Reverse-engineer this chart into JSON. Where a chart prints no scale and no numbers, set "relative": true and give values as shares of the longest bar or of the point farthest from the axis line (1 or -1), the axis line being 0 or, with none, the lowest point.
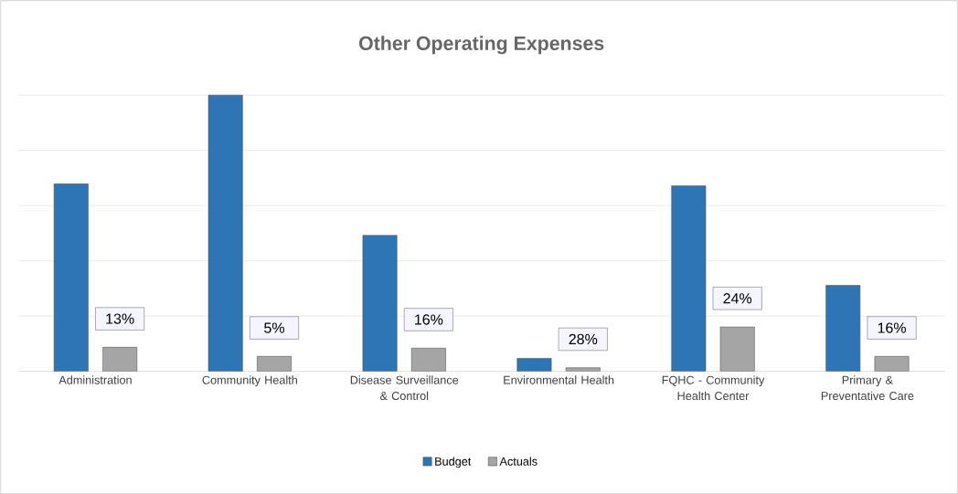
{
  "chart_data": {
    "type": "bar",
    "title": "Other Operating Expenses",
    "relative": true,
    "grid": "y",
    "legend": "bottom",
    "categories": [
      "Administration",
      "Community Health",
      "Disease Surveillance & Control",
      "Environmental Health",
      "FQHC - Community Health Center",
      "Primary & Preventative Care"
    ],
    "series": [
      {
        "name": "Budget",
        "color": "#2e75b6",
        "values": [
          0.679,
          1,
          0.492,
          0.047,
          0.672,
          0.311
        ]
      },
      {
        "name": "Actuals",
        "color": "#a5a5a5",
        "values": [
          0.087,
          0.054,
          0.084,
          0.013,
          0.161,
          0.054
        ]
      }
    ],
    "annotations": [
      "13%",
      "5%",
      "16%",
      "28%",
      "24%",
      "16%"
    ]
  }
}
